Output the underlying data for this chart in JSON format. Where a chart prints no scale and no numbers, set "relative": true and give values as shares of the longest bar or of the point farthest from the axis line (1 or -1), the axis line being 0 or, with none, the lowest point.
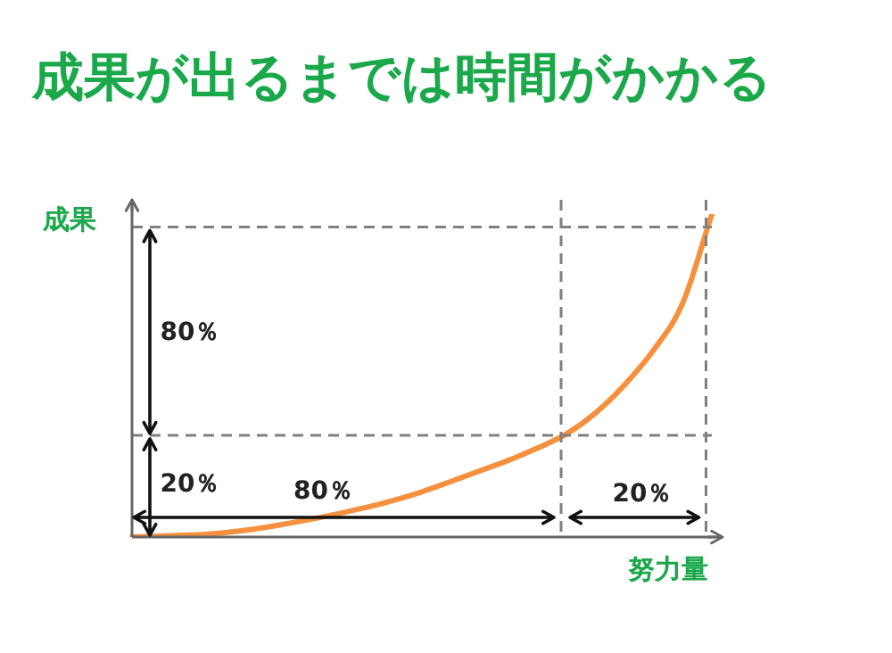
{
  "chart_data": {
    "type": "line",
    "title": "成果が出るまでは時間がかかる",
    "xlabel": "努力量",
    "ylabel": "成果",
    "relative": true,
    "categories": [
      null,
      null,
      null,
      null,
      null,
      null,
      null,
      null,
      null,
      null,
      null,
      null,
      null,
      null,
      null,
      null,
      null,
      null,
      null,
      null,
      null
    ],
    "series": [
      {
        "color": "#f5913e",
        "values": [
          0,
          0.003,
          0.006,
          0.012,
          0.022,
          0.036,
          0.052,
          0.07,
          0.09,
          0.113,
          0.14,
          0.172,
          0.205,
          0.238,
          0.276,
          0.32,
          0.385,
          0.472,
          0.58,
          0.725,
          1
        ]
      }
    ],
    "annotations": [
      "80％",
      "20％",
      "80％",
      "20％"
    ],
    "legend": false,
    "marker": "none",
    "line_style": "solid"
  }
}
